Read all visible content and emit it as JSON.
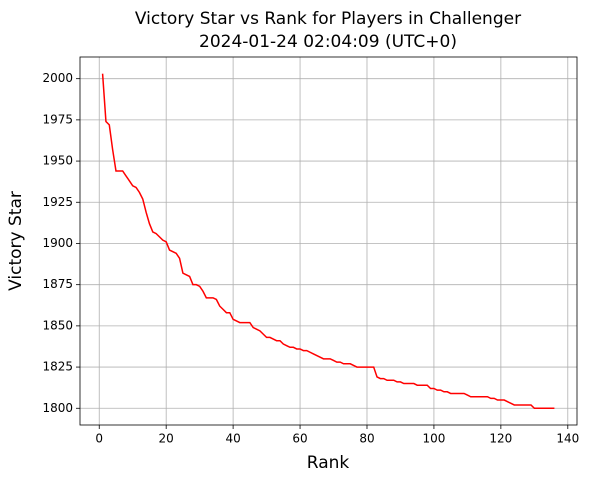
{
  "chart_data": {
    "type": "line",
    "title": "Victory Star vs Rank for Players in Challenger",
    "subtitle": "2024-01-24 02:04:09 (UTC+0)",
    "x_label": "Rank",
    "y_label": "Victory Star",
    "x": [
      1,
      2,
      3,
      4,
      5,
      6,
      7,
      8,
      9,
      10,
      11,
      12,
      13,
      14,
      15,
      16,
      17,
      18,
      19,
      20,
      21,
      22,
      23,
      24,
      25,
      26,
      27,
      28,
      29,
      30,
      31,
      32,
      33,
      34,
      35,
      36,
      37,
      38,
      39,
      40,
      41,
      42,
      43,
      44,
      45,
      46,
      47,
      48,
      49,
      50,
      51,
      52,
      53,
      54,
      55,
      56,
      57,
      58,
      59,
      60,
      61,
      62,
      63,
      64,
      65,
      66,
      67,
      68,
      69,
      70,
      71,
      72,
      73,
      74,
      75,
      76,
      77,
      78,
      79,
      80,
      81,
      82,
      83,
      84,
      85,
      86,
      87,
      88,
      89,
      90,
      91,
      92,
      93,
      94,
      95,
      96,
      97,
      98,
      99,
      100,
      101,
      102,
      103,
      104,
      105,
      106,
      107,
      108,
      109,
      110,
      111,
      112,
      113,
      114,
      115,
      116,
      117,
      118,
      119,
      120,
      121,
      122,
      123,
      124,
      125,
      126,
      127,
      128,
      129,
      130,
      131,
      132,
      133,
      134,
      135,
      136
    ],
    "series": [
      {
        "name": "Victory Star",
        "color": "#ff0000",
        "values": [
          2003,
          1974,
          1972,
          1957,
          1944,
          1944,
          1944,
          1941,
          1938,
          1935,
          1934,
          1931,
          1927,
          1919,
          1912,
          1907,
          1906,
          1904,
          1902,
          1901,
          1896,
          1895,
          1894,
          1891,
          1882,
          1881,
          1880,
          1875,
          1875,
          1874,
          1871,
          1867,
          1867,
          1867,
          1866,
          1862,
          1860,
          1858,
          1858,
          1854,
          1853,
          1852,
          1852,
          1852,
          1852,
          1849,
          1848,
          1847,
          1845,
          1843,
          1843,
          1842,
          1841,
          1841,
          1839,
          1838,
          1837,
          1837,
          1836,
          1836,
          1835,
          1835,
          1834,
          1833,
          1832,
          1831,
          1830,
          1830,
          1830,
          1829,
          1828,
          1828,
          1827,
          1827,
          1827,
          1826,
          1825,
          1825,
          1825,
          1825,
          1825,
          1825,
          1819,
          1818,
          1818,
          1817,
          1817,
          1817,
          1816,
          1816,
          1815,
          1815,
          1815,
          1815,
          1814,
          1814,
          1814,
          1814,
          1812,
          1812,
          1811,
          1811,
          1810,
          1810,
          1809,
          1809,
          1809,
          1809,
          1809,
          1808,
          1807,
          1807,
          1807,
          1807,
          1807,
          1807,
          1806,
          1806,
          1805,
          1805,
          1805,
          1804,
          1803,
          1802,
          1802,
          1802,
          1802,
          1802,
          1802,
          1800,
          1800,
          1800,
          1800,
          1800,
          1800,
          1800
        ]
      }
    ],
    "xlim": [
      -5.75,
      142.75
    ],
    "ylim": [
      1789.85,
      2013.15
    ],
    "xticks": [
      0,
      20,
      40,
      60,
      80,
      100,
      120,
      140
    ],
    "yticks": [
      1800,
      1825,
      1850,
      1875,
      1900,
      1925,
      1950,
      1975,
      2000
    ],
    "grid": true
  }
}
